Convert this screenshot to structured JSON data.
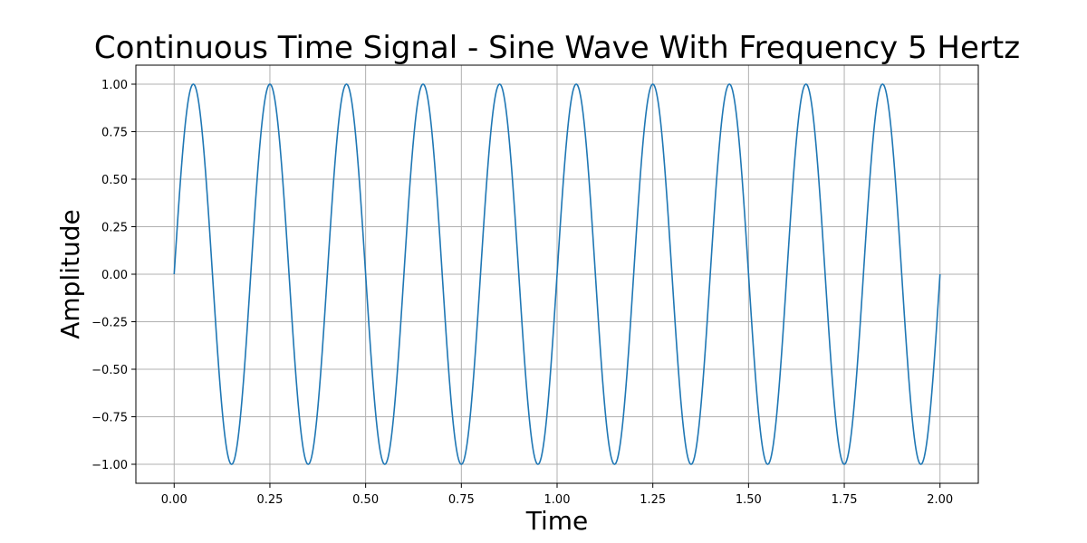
{
  "chart_data": {
    "type": "line",
    "title": "Continuous Time Signal - Sine Wave With Frequency 5 Hertz",
    "xlabel": "Time",
    "ylabel": "Amplitude",
    "xlim": [
      -0.1,
      2.1
    ],
    "ylim": [
      -1.1,
      1.1
    ],
    "x_ticks": [
      "0.00",
      "0.25",
      "0.50",
      "0.75",
      "1.00",
      "1.25",
      "1.50",
      "1.75",
      "2.00"
    ],
    "y_ticks": [
      "1.00",
      "0.75",
      "0.50",
      "0.25",
      "0.00",
      "−0.25",
      "−0.50",
      "−0.75",
      "−1.00"
    ],
    "grid": true,
    "series": [
      {
        "color": "#1f77b4",
        "function": "sin(2*pi*5*t)",
        "frequency_hz": 5,
        "amplitude": 1,
        "x_start": 0,
        "x_end": 2
      }
    ]
  }
}
